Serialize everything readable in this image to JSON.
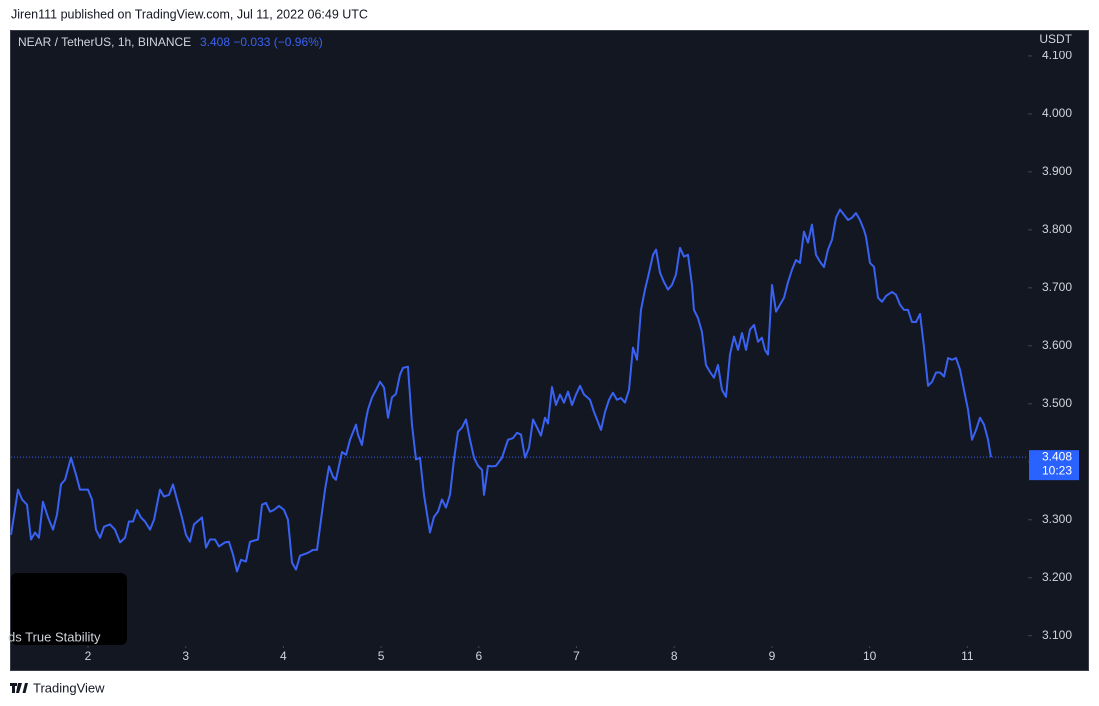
{
  "header": "Jiren111 published on TradingView.com, Jul 11, 2022 06:49 UTC",
  "footer": "TradingView",
  "overlay_text": "ds True Stability",
  "chart_data": {
    "type": "line",
    "title": "NEAR / TetherUS, 1h, BINANCE",
    "change": "−0.033",
    "change_percent": "(−0.96%)",
    "y_axis_label": "USDT",
    "countdown": "10:23",
    "xlim": [
      1.212,
      11.621
    ],
    "xticks": [
      2,
      3,
      4,
      5,
      6,
      7,
      8,
      9,
      10,
      11
    ],
    "ylim": [
      3.084,
      4.143
    ],
    "yticks": [
      {
        "value": 3.1,
        "label": "3.100"
      },
      {
        "value": 3.2,
        "label": "3.200"
      },
      {
        "value": 3.3,
        "label": "3.300"
      },
      {
        "value": 3.4,
        "label": "3.400"
      },
      {
        "value": 3.5,
        "label": "3.500"
      },
      {
        "value": 3.6,
        "label": "3.600"
      },
      {
        "value": 3.7,
        "label": "3.700"
      },
      {
        "value": 3.8,
        "label": "3.800"
      },
      {
        "value": 3.9,
        "label": "3.900"
      },
      {
        "value": 4.0,
        "label": "4.000"
      },
      {
        "value": 4.1,
        "label": "4.100"
      }
    ],
    "grid": false,
    "x": [
      1.212,
      1.284,
      1.325,
      1.376,
      1.417,
      1.458,
      1.498,
      1.539,
      1.591,
      1.642,
      1.683,
      1.724,
      1.765,
      1.826,
      1.877,
      1.918,
      2.0,
      2.041,
      2.082,
      2.123,
      2.164,
      2.225,
      2.276,
      2.328,
      2.379,
      2.419,
      2.461,
      2.502,
      2.542,
      2.583,
      2.635,
      2.676,
      2.737,
      2.778,
      2.829,
      2.87,
      2.911,
      2.962,
      3.003,
      3.044,
      3.085,
      3.167,
      3.208,
      3.249,
      3.3,
      3.341,
      3.402,
      3.443,
      3.484,
      3.525,
      3.566,
      3.617,
      3.658,
      3.74,
      3.781,
      3.822,
      3.863,
      3.904,
      3.955,
      4.006,
      4.047,
      4.088,
      4.129,
      4.17,
      4.252,
      4.303,
      4.344,
      4.385,
      4.426,
      4.467,
      4.508,
      4.538,
      4.6,
      4.641,
      4.682,
      4.743,
      4.763,
      4.804,
      4.845,
      4.866,
      4.907,
      4.948,
      4.989,
      5.03,
      5.071,
      5.111,
      5.152,
      5.193,
      5.224,
      5.275,
      5.316,
      5.357,
      5.398,
      5.439,
      5.5,
      5.541,
      5.582,
      5.623,
      5.664,
      5.705,
      5.746,
      5.787,
      5.828,
      5.869,
      5.91,
      5.951,
      5.992,
      6.033,
      6.053,
      6.094,
      6.135,
      6.176,
      6.237,
      6.299,
      6.35,
      6.391,
      6.432,
      6.473,
      6.514,
      6.555,
      6.596,
      6.636,
      6.677,
      6.708,
      6.749,
      6.79,
      6.831,
      6.872,
      6.913,
      6.954,
      6.995,
      7.036,
      7.077,
      7.138,
      7.179,
      7.251,
      7.292,
      7.333,
      7.373,
      7.414,
      7.455,
      7.496,
      7.537,
      7.578,
      7.619,
      7.66,
      7.701,
      7.742,
      7.783,
      7.814,
      7.855,
      7.895,
      7.936,
      7.977,
      8.018,
      8.059,
      8.1,
      8.141,
      8.182,
      8.202,
      8.243,
      8.284,
      8.325,
      8.366,
      8.407,
      8.448,
      8.489,
      8.53,
      8.571,
      8.612,
      8.653,
      8.694,
      8.735,
      8.776,
      8.817,
      8.858,
      8.898,
      8.929,
      8.96,
      9.001,
      9.042,
      9.083,
      9.124,
      9.165,
      9.205,
      9.246,
      9.287,
      9.328,
      9.369,
      9.41,
      9.451,
      9.492,
      9.533,
      9.574,
      9.615,
      9.656,
      9.697,
      9.738,
      9.779,
      9.82,
      9.86,
      9.901,
      9.942,
      9.963,
      10.004,
      10.045,
      10.086,
      10.127,
      10.168,
      10.229,
      10.27,
      10.311,
      10.352,
      10.393,
      10.434,
      10.475,
      10.516,
      10.557,
      10.598,
      10.639,
      10.68,
      10.721,
      10.762,
      10.803,
      10.844,
      10.884,
      10.925,
      10.966,
      11.007,
      11.048,
      11.089,
      11.13,
      11.171,
      11.212,
      11.242
    ],
    "series": [
      {
        "color": "#3a62f2",
        "values": [
          3.274,
          3.352,
          3.335,
          3.326,
          3.266,
          3.278,
          3.269,
          3.331,
          3.304,
          3.283,
          3.309,
          3.361,
          3.369,
          3.407,
          3.378,
          3.352,
          3.352,
          3.335,
          3.283,
          3.269,
          3.288,
          3.292,
          3.283,
          3.261,
          3.269,
          3.297,
          3.297,
          3.317,
          3.304,
          3.297,
          3.283,
          3.3,
          3.352,
          3.34,
          3.343,
          3.361,
          3.335,
          3.304,
          3.274,
          3.262,
          3.292,
          3.304,
          3.252,
          3.266,
          3.266,
          3.254,
          3.261,
          3.262,
          3.24,
          3.211,
          3.231,
          3.228,
          3.262,
          3.266,
          3.326,
          3.329,
          3.314,
          3.317,
          3.324,
          3.317,
          3.3,
          3.226,
          3.214,
          3.238,
          3.243,
          3.248,
          3.248,
          3.3,
          3.352,
          3.392,
          3.374,
          3.369,
          3.417,
          3.412,
          3.438,
          3.464,
          3.447,
          3.429,
          3.473,
          3.49,
          3.511,
          3.524,
          3.538,
          3.528,
          3.476,
          3.511,
          3.517,
          3.55,
          3.562,
          3.564,
          3.464,
          3.404,
          3.407,
          3.343,
          3.278,
          3.305,
          3.314,
          3.335,
          3.321,
          3.343,
          3.404,
          3.452,
          3.459,
          3.473,
          3.438,
          3.407,
          3.393,
          3.386,
          3.343,
          3.393,
          3.392,
          3.393,
          3.407,
          3.438,
          3.441,
          3.45,
          3.447,
          3.407,
          3.424,
          3.473,
          3.459,
          3.445,
          3.476,
          3.466,
          3.529,
          3.498,
          3.516,
          3.502,
          3.521,
          3.498,
          3.516,
          3.531,
          3.516,
          3.507,
          3.486,
          3.455,
          3.486,
          3.507,
          3.519,
          3.507,
          3.51,
          3.502,
          3.524,
          3.597,
          3.576,
          3.662,
          3.697,
          3.726,
          3.757,
          3.766,
          3.726,
          3.71,
          3.697,
          3.705,
          3.723,
          3.769,
          3.754,
          3.757,
          3.705,
          3.662,
          3.648,
          3.624,
          3.567,
          3.555,
          3.545,
          3.567,
          3.524,
          3.512,
          3.585,
          3.616,
          3.593,
          3.622,
          3.593,
          3.628,
          3.636,
          3.607,
          3.614,
          3.593,
          3.585,
          3.705,
          3.659,
          3.671,
          3.683,
          3.71,
          3.731,
          3.748,
          3.743,
          3.797,
          3.778,
          3.809,
          3.757,
          3.745,
          3.736,
          3.766,
          3.783,
          3.821,
          3.835,
          3.826,
          3.817,
          3.821,
          3.829,
          3.817,
          3.8,
          3.788,
          3.743,
          3.736,
          3.683,
          3.676,
          3.686,
          3.693,
          3.688,
          3.671,
          3.662,
          3.662,
          3.641,
          3.641,
          3.655,
          3.597,
          3.531,
          3.538,
          3.554,
          3.554,
          3.547,
          3.579,
          3.576,
          3.579,
          3.559,
          3.524,
          3.49,
          3.438,
          3.455,
          3.476,
          3.464,
          3.438,
          3.408
        ]
      }
    ]
  }
}
